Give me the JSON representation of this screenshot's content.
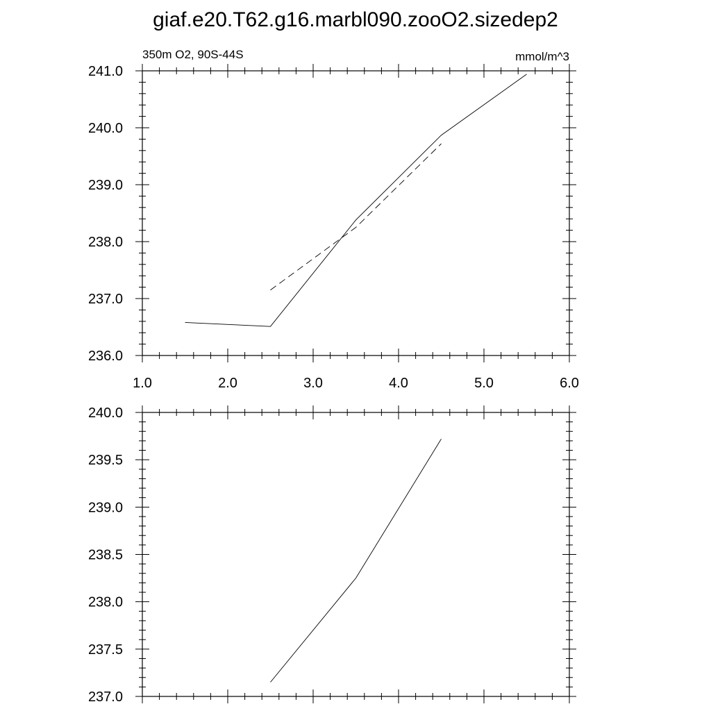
{
  "title": "giaf.e20.T62.g16.marbl090.zooO2.sizedep2",
  "chart_data": [
    {
      "type": "line",
      "left_label": "350m O2, 90S-44S",
      "right_label": "mmol/m^3",
      "xlim": [
        1.0,
        6.0
      ],
      "ylim": [
        236.0,
        241.0
      ],
      "x_ticks": [
        "1.0",
        "2.0",
        "3.0",
        "4.0",
        "5.0",
        "6.0"
      ],
      "y_ticks": [
        "236.0",
        "237.0",
        "238.0",
        "239.0",
        "240.0",
        "241.0"
      ],
      "grid": false,
      "series": [
        {
          "style": "solid",
          "x": [
            1.5,
            2.5,
            3.5,
            4.5,
            5.5
          ],
          "y": [
            236.58,
            236.51,
            238.38,
            239.87,
            240.94
          ]
        },
        {
          "style": "dashed",
          "x": [
            2.5,
            3.5,
            4.5
          ],
          "y": [
            237.15,
            238.25,
            239.72
          ]
        }
      ]
    },
    {
      "type": "line",
      "xlim": [
        1.0,
        6.0
      ],
      "ylim": [
        237.0,
        240.0
      ],
      "y_ticks": [
        "237.0",
        "237.5",
        "238.0",
        "238.5",
        "239.0",
        "239.5",
        "240.0"
      ],
      "grid": false,
      "series": [
        {
          "style": "solid",
          "x": [
            2.5,
            3.5,
            4.5
          ],
          "y": [
            237.15,
            238.25,
            239.72
          ]
        }
      ]
    }
  ]
}
